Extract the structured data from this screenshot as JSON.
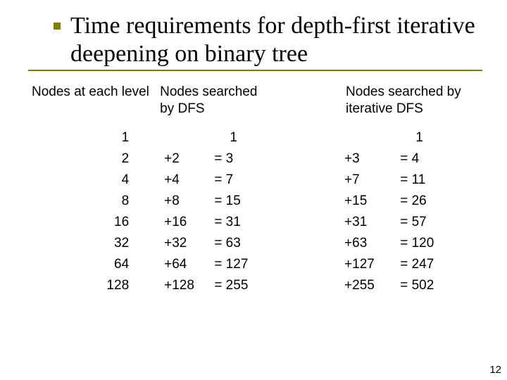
{
  "title": "Time requirements for depth-first iterative deepening on binary tree",
  "header": {
    "level": "Nodes at each level",
    "dfs": "Nodes searched by DFS",
    "idfs": "Nodes searched by iterative DFS"
  },
  "rows": [
    {
      "level": "1",
      "dfs_plus": "",
      "dfs_eq": "1",
      "idfs_plus": "",
      "idfs_eq": "1"
    },
    {
      "level": "2",
      "dfs_plus": "+2",
      "dfs_eq": "=   3",
      "idfs_plus": "+3",
      "idfs_eq": "=    4"
    },
    {
      "level": "4",
      "dfs_plus": "+4",
      "dfs_eq": "=   7",
      "idfs_plus": "+7",
      "idfs_eq": "=  11"
    },
    {
      "level": "8",
      "dfs_plus": "+8",
      "dfs_eq": "= 15",
      "idfs_plus": "+15",
      "idfs_eq": "=  26"
    },
    {
      "level": "16",
      "dfs_plus": "+16",
      "dfs_eq": "=  31",
      "idfs_plus": "+31",
      "idfs_eq": "=   57"
    },
    {
      "level": "32",
      "dfs_plus": "+32",
      "dfs_eq": "=  63",
      "idfs_plus": "+63",
      "idfs_eq": "= 120"
    },
    {
      "level": "64",
      "dfs_plus": "+64",
      "dfs_eq": "= 127",
      "idfs_plus": "+127",
      "idfs_eq": "= 247"
    },
    {
      "level": "128",
      "dfs_plus": "+128",
      "dfs_eq": "= 255",
      "idfs_plus": "+255",
      "idfs_eq": "= 502"
    }
  ],
  "page_number": "12",
  "colors": {
    "accent": "#808000",
    "text": "#000000",
    "background": "#ffffff"
  }
}
